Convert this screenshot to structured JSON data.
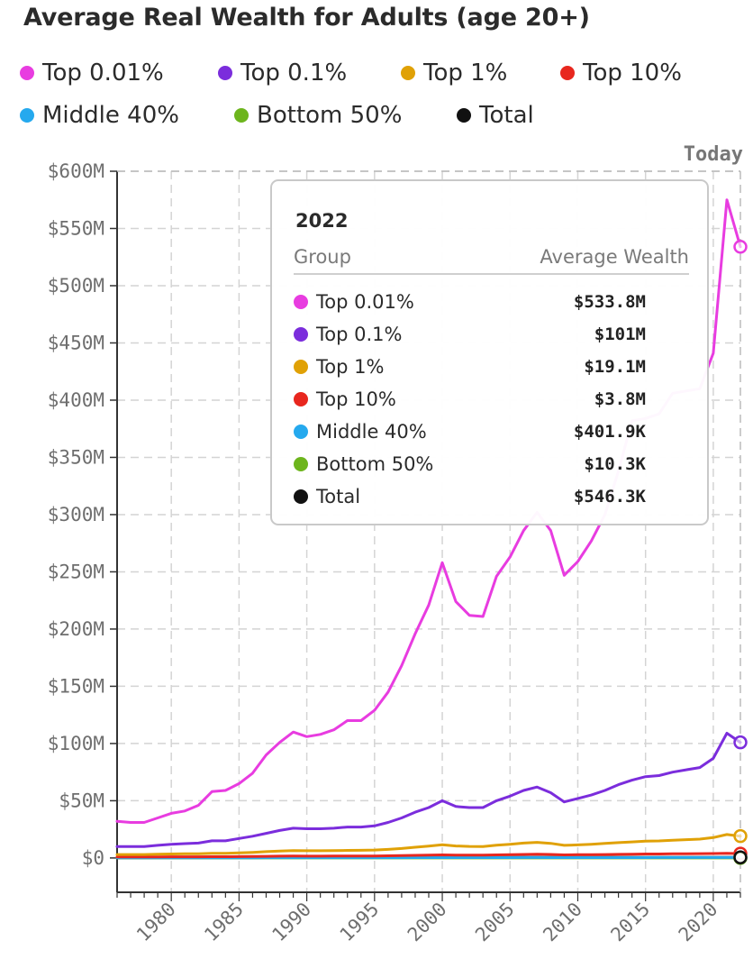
{
  "chart_data": {
    "type": "line",
    "title": "Average Real Wealth for Adults (age 20+)",
    "xlim": [
      1976,
      2022
    ],
    "ylim": [
      -30,
      600
    ],
    "yticks": [
      0,
      50,
      100,
      150,
      200,
      250,
      300,
      350,
      400,
      450,
      500,
      550,
      600
    ],
    "ytick_labels": [
      "$0",
      "$50M",
      "$100M",
      "$150M",
      "$200M",
      "$250M",
      "$300M",
      "$350M",
      "$400M",
      "$450M",
      "$500M",
      "$550M",
      "$600M"
    ],
    "xticks": [
      1980,
      1985,
      1990,
      1995,
      2000,
      2005,
      2010,
      2015,
      2020
    ],
    "xtick_labels": [
      "1980",
      "1985",
      "1990",
      "1995",
      "2000",
      "2005",
      "2010",
      "2015",
      "2020"
    ],
    "grid": true,
    "legend_position": "top",
    "annotation_today": "Today",
    "x": [
      1976,
      1977,
      1978,
      1979,
      1980,
      1981,
      1982,
      1983,
      1984,
      1985,
      1986,
      1987,
      1988,
      1989,
      1990,
      1991,
      1992,
      1993,
      1994,
      1995,
      1996,
      1997,
      1998,
      1999,
      2000,
      2001,
      2002,
      2003,
      2004,
      2005,
      2006,
      2007,
      2008,
      2009,
      2010,
      2011,
      2012,
      2013,
      2014,
      2015,
      2016,
      2017,
      2018,
      2019,
      2020,
      2021,
      2022
    ],
    "series": [
      {
        "name": "Top 0.01%",
        "color": "#e83ce0",
        "values": [
          32,
          31,
          31,
          35,
          39,
          41,
          46,
          58,
          59,
          65,
          74,
          90,
          101,
          110,
          106,
          108,
          112,
          120,
          120,
          129,
          145,
          168,
          196,
          221,
          258,
          224,
          212,
          211,
          246,
          263,
          286,
          302,
          286,
          247,
          259,
          277,
          300,
          338,
          382,
          384,
          388,
          406,
          408,
          410,
          441,
          575,
          534
        ]
      },
      {
        "name": "Top 0.1%",
        "color": "#7b2ddc",
        "values": [
          10,
          10,
          10,
          11,
          12,
          12.5,
          13,
          15,
          15,
          17,
          19,
          21.5,
          24,
          26,
          25.5,
          25.5,
          26,
          27,
          27,
          28,
          31,
          35,
          40,
          44,
          50,
          45,
          44,
          44,
          50,
          54,
          59,
          62,
          57,
          49,
          52,
          55,
          59,
          64,
          68,
          71,
          72,
          75,
          77,
          79,
          87,
          109,
          101
        ]
      },
      {
        "name": "Top 1%",
        "color": "#e0a106",
        "values": [
          3,
          3,
          3,
          3.2,
          3.5,
          3.6,
          3.7,
          4,
          4.1,
          4.4,
          4.9,
          5.5,
          6,
          6.5,
          6.3,
          6.3,
          6.4,
          6.6,
          6.7,
          6.9,
          7.5,
          8.3,
          9.4,
          10.4,
          11.5,
          10.5,
          10.1,
          10,
          11.2,
          12,
          13,
          13.6,
          12.8,
          11,
          11.4,
          12,
          12.7,
          13.4,
          14,
          14.7,
          14.9,
          15.5,
          16,
          16.5,
          17.8,
          20.5,
          19.1
        ]
      },
      {
        "name": "Top 10%",
        "color": "#e8271e",
        "values": [
          0.9,
          0.9,
          0.9,
          0.95,
          1,
          1.02,
          1.05,
          1.1,
          1.12,
          1.2,
          1.3,
          1.45,
          1.55,
          1.65,
          1.6,
          1.6,
          1.62,
          1.66,
          1.7,
          1.75,
          1.88,
          2.05,
          2.3,
          2.5,
          2.7,
          2.5,
          2.45,
          2.45,
          2.7,
          2.9,
          3.1,
          3.2,
          3.05,
          2.7,
          2.8,
          2.9,
          3,
          3.15,
          3.3,
          3.45,
          3.5,
          3.6,
          3.7,
          3.75,
          3.9,
          4.1,
          3.8
        ]
      },
      {
        "name": "Middle 40%",
        "color": "#25a9ee",
        "values": [
          0.15,
          0.15,
          0.15,
          0.16,
          0.17,
          0.17,
          0.17,
          0.18,
          0.18,
          0.19,
          0.2,
          0.21,
          0.22,
          0.23,
          0.23,
          0.23,
          0.23,
          0.24,
          0.24,
          0.25,
          0.26,
          0.27,
          0.29,
          0.3,
          0.32,
          0.31,
          0.3,
          0.3,
          0.33,
          0.35,
          0.37,
          0.38,
          0.35,
          0.3,
          0.3,
          0.31,
          0.32,
          0.33,
          0.34,
          0.35,
          0.36,
          0.37,
          0.38,
          0.38,
          0.39,
          0.42,
          0.4019
        ]
      },
      {
        "name": "Bottom 50%",
        "color": "#6db51d",
        "values": [
          0.005,
          0.005,
          0.005,
          0.005,
          0.005,
          0.005,
          0.005,
          0.005,
          0.005,
          0.005,
          0.005,
          0.005,
          0.005,
          0.005,
          0.005,
          0.005,
          0.005,
          0.005,
          0.005,
          0.006,
          0.006,
          0.006,
          0.007,
          0.007,
          0.008,
          0.008,
          0.007,
          0.007,
          0.008,
          0.009,
          0.01,
          0.01,
          0.006,
          0.002,
          0,
          0,
          0.002,
          0.004,
          0.005,
          0.006,
          0.007,
          0.008,
          0.009,
          0.009,
          0.01,
          0.012,
          0.0103
        ]
      },
      {
        "name": "Total",
        "color": "#111111",
        "values": [
          0.2,
          0.2,
          0.2,
          0.21,
          0.22,
          0.22,
          0.23,
          0.24,
          0.24,
          0.26,
          0.27,
          0.29,
          0.31,
          0.32,
          0.32,
          0.32,
          0.32,
          0.33,
          0.33,
          0.34,
          0.36,
          0.39,
          0.42,
          0.45,
          0.48,
          0.45,
          0.44,
          0.44,
          0.48,
          0.5,
          0.53,
          0.54,
          0.5,
          0.44,
          0.45,
          0.46,
          0.47,
          0.49,
          0.5,
          0.51,
          0.52,
          0.53,
          0.54,
          0.55,
          0.56,
          0.59,
          0.5463
        ]
      }
    ]
  },
  "tooltip": {
    "year": "2022",
    "col_group": "Group",
    "col_value": "Average Wealth",
    "rows": [
      {
        "label": "Top 0.01%",
        "value": "$533.8M",
        "color": "#e83ce0"
      },
      {
        "label": "Top 0.1%",
        "value": "$101M",
        "color": "#7b2ddc"
      },
      {
        "label": "Top 1%",
        "value": "$19.1M",
        "color": "#e0a106"
      },
      {
        "label": "Top 10%",
        "value": "$3.8M",
        "color": "#e8271e"
      },
      {
        "label": "Middle 40%",
        "value": "$401.9K",
        "color": "#25a9ee"
      },
      {
        "label": "Bottom 50%",
        "value": "$10.3K",
        "color": "#6db51d"
      },
      {
        "label": "Total",
        "value": "$546.3K",
        "color": "#111111"
      }
    ]
  }
}
